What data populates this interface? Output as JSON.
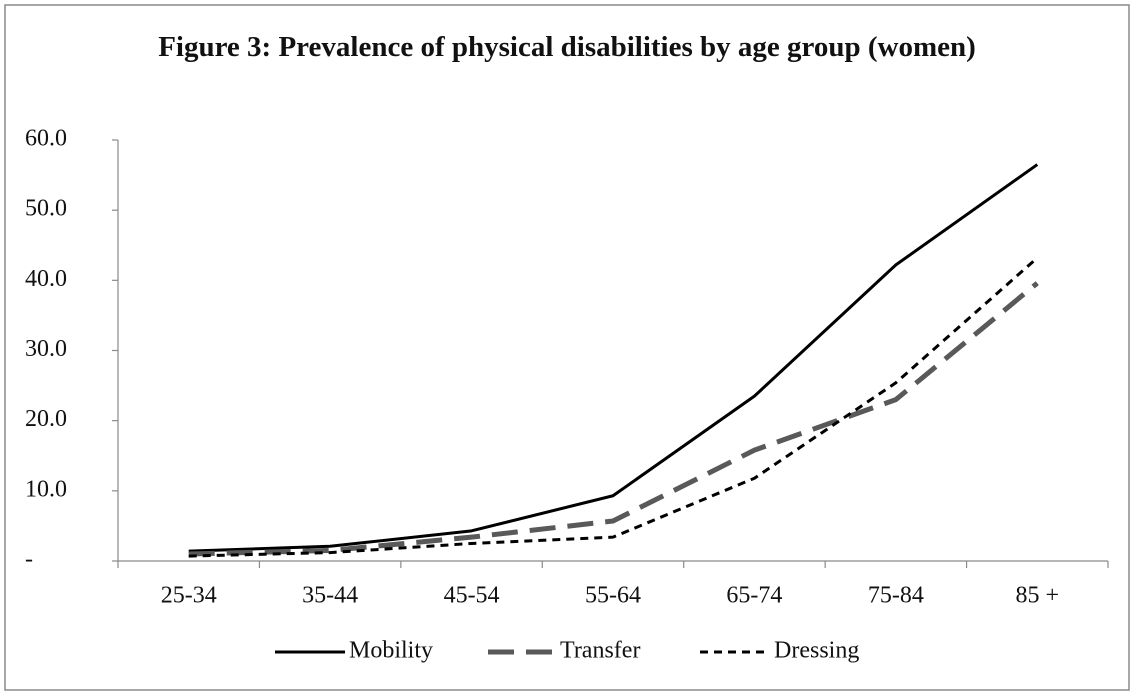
{
  "chart_data": {
    "type": "line",
    "title": "Figure 3: Prevalence of physical disabilities by age group (women)",
    "categories": [
      "25-34",
      "35-44",
      "45-54",
      "55-64",
      "65-74",
      "75-84",
      "85 +"
    ],
    "series": [
      {
        "name": "Mobility",
        "color": "#000000",
        "dash": "solid",
        "values": [
          1.4,
          2.1,
          4.3,
          9.3,
          23.5,
          42.2,
          56.5
        ]
      },
      {
        "name": "Transfer",
        "color": "#595959",
        "dash": "long",
        "values": [
          1.0,
          1.5,
          3.4,
          5.7,
          15.8,
          23.0,
          39.6
        ]
      },
      {
        "name": "Dressing",
        "color": "#000000",
        "dash": "short",
        "values": [
          0.7,
          1.2,
          2.5,
          3.4,
          11.8,
          25.4,
          43.2
        ]
      }
    ],
    "ylim": [
      0,
      60
    ],
    "yticks": [
      {
        "value": 0,
        "label": "-"
      },
      {
        "value": 10,
        "label": "10.0"
      },
      {
        "value": 20,
        "label": "20.0"
      },
      {
        "value": 30,
        "label": "30.0"
      },
      {
        "value": 40,
        "label": "40.0"
      },
      {
        "value": 50,
        "label": "50.0"
      },
      {
        "value": 60,
        "label": "60.0"
      }
    ],
    "grid": false,
    "legend": "bottom"
  }
}
